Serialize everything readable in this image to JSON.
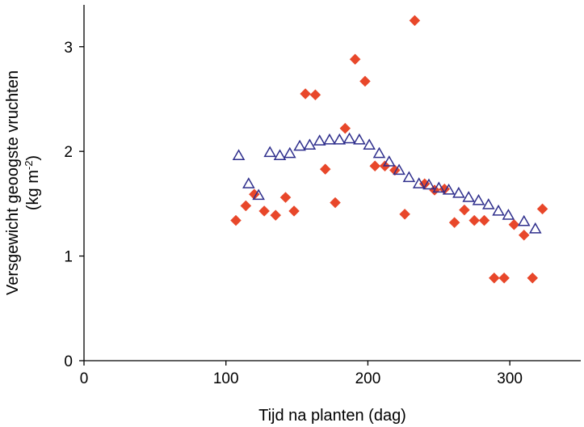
{
  "chart_data": {
    "type": "scatter",
    "title": "",
    "xlabel": "Tijd na planten (dag)",
    "ylabel_line1": "Versgewicht geoogste vruchten",
    "ylabel_line2_prefix": "(kg m",
    "ylabel_line2_sup": "-2",
    "ylabel_line2_suffix": ")",
    "xlim": [
      0,
      350
    ],
    "ylim": [
      0,
      3.4
    ],
    "xticks": [
      0,
      100,
      200,
      300
    ],
    "xtick_labels": [
      "0",
      "100",
      "200",
      "300"
    ],
    "yticks": [
      0,
      1,
      2,
      3
    ],
    "ytick_labels": [
      "0",
      "1",
      "2",
      "3"
    ],
    "grid": false,
    "legend": "none",
    "series": [
      {
        "marker": "diamond",
        "color": "#e8472a",
        "points": [
          [
            107,
            1.34
          ],
          [
            114,
            1.48
          ],
          [
            120,
            1.59
          ],
          [
            127,
            1.43
          ],
          [
            135,
            1.39
          ],
          [
            142,
            1.56
          ],
          [
            148,
            1.43
          ],
          [
            156,
            2.55
          ],
          [
            163,
            2.54
          ],
          [
            170,
            1.83
          ],
          [
            177,
            1.51
          ],
          [
            184,
            2.22
          ],
          [
            191,
            2.88
          ],
          [
            198,
            2.67
          ],
          [
            205,
            1.86
          ],
          [
            212,
            1.86
          ],
          [
            219,
            1.82
          ],
          [
            226,
            1.4
          ],
          [
            233,
            3.25
          ],
          [
            240,
            1.69
          ],
          [
            247,
            1.63
          ],
          [
            254,
            1.64
          ],
          [
            261,
            1.32
          ],
          [
            268,
            1.44
          ],
          [
            275,
            1.34
          ],
          [
            282,
            1.34
          ],
          [
            289,
            0.79
          ],
          [
            296,
            0.79
          ],
          [
            303,
            1.3
          ],
          [
            310,
            1.2
          ],
          [
            316,
            0.79
          ],
          [
            323,
            1.45
          ]
        ]
      },
      {
        "marker": "triangle",
        "color": "#2e2e8c",
        "points": [
          [
            109,
            1.96
          ],
          [
            116,
            1.69
          ],
          [
            123,
            1.58
          ],
          [
            131,
            1.99
          ],
          [
            138,
            1.96
          ],
          [
            145,
            1.98
          ],
          [
            152,
            2.05
          ],
          [
            159,
            2.06
          ],
          [
            166,
            2.1
          ],
          [
            173,
            2.11
          ],
          [
            180,
            2.11
          ],
          [
            187,
            2.12
          ],
          [
            194,
            2.11
          ],
          [
            201,
            2.06
          ],
          [
            208,
            1.98
          ],
          [
            215,
            1.9
          ],
          [
            222,
            1.82
          ],
          [
            229,
            1.75
          ],
          [
            236,
            1.69
          ],
          [
            243,
            1.68
          ],
          [
            250,
            1.65
          ],
          [
            257,
            1.63
          ],
          [
            264,
            1.6
          ],
          [
            271,
            1.56
          ],
          [
            278,
            1.53
          ],
          [
            285,
            1.49
          ],
          [
            292,
            1.43
          ],
          [
            299,
            1.39
          ],
          [
            310,
            1.33
          ],
          [
            318,
            1.26
          ]
        ]
      }
    ]
  }
}
